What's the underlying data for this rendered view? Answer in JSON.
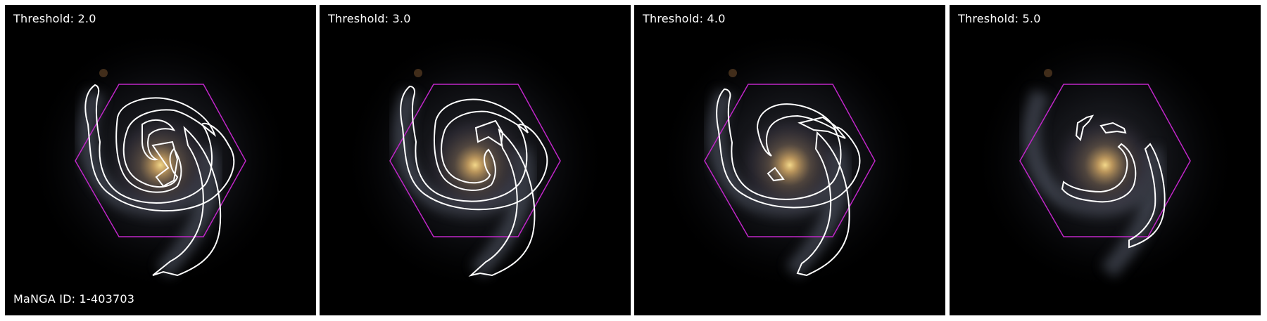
{
  "panels": [
    {
      "threshold_label": "Threshold: 2.0",
      "id_label": "MaNGA ID: 1-403703"
    },
    {
      "threshold_label": "Threshold: 3.0"
    },
    {
      "threshold_label": "Threshold: 4.0"
    },
    {
      "threshold_label": "Threshold: 5.0"
    }
  ],
  "colors": {
    "hexagon": "#c026c8",
    "contour": "#ffffff",
    "background": "#000000",
    "core": "#e8c070"
  }
}
